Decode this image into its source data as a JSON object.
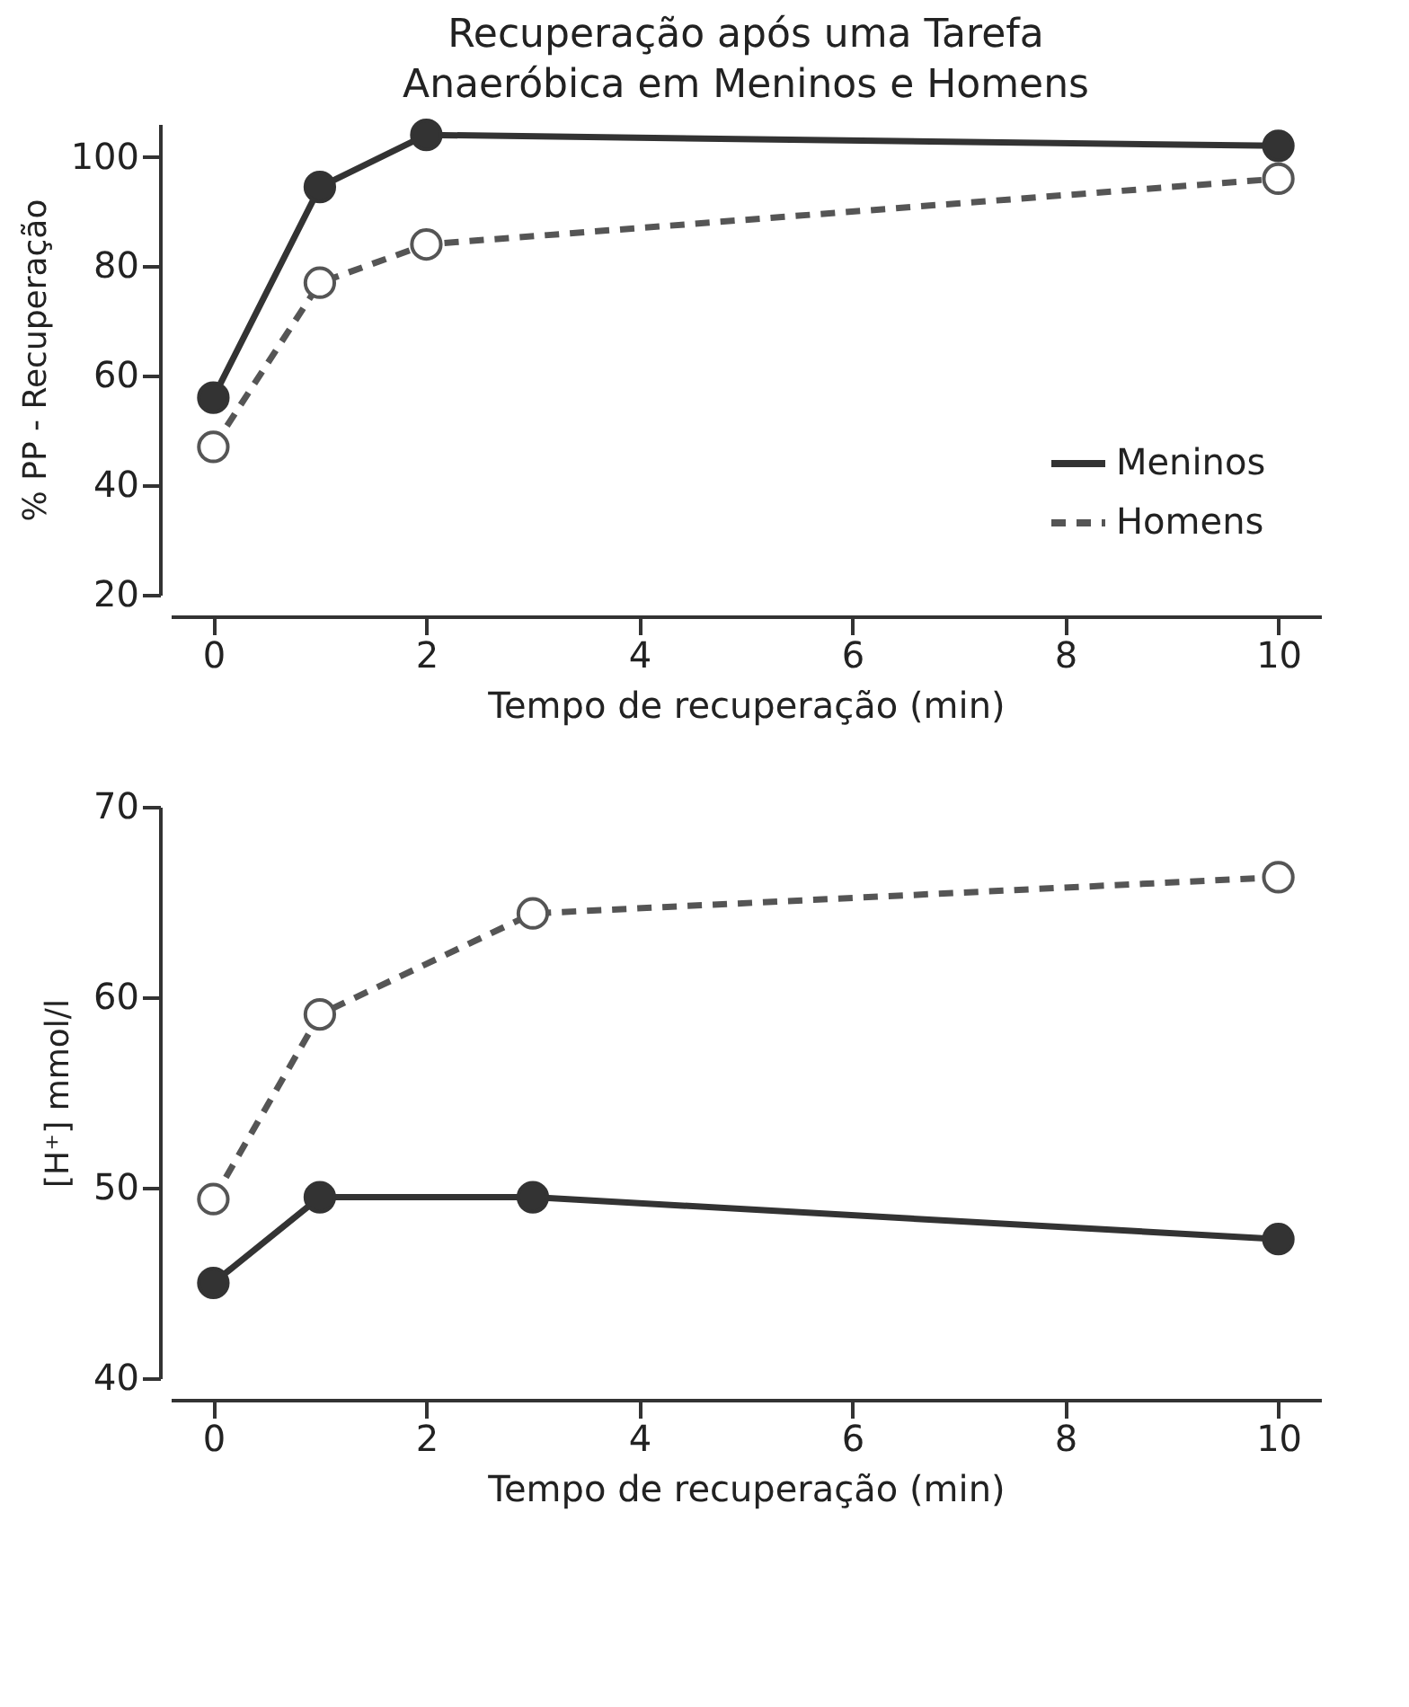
{
  "chart_data": [
    {
      "type": "line",
      "title": "Recuperação após uma Tarefa Anaeróbica em Meninos e Homens",
      "xlabel": "Tempo de recuperação (min)",
      "ylabel": "% PP - Recuperação",
      "x": [
        0,
        1,
        2,
        10
      ],
      "series": [
        {
          "name": "Meninos",
          "color": "#333333",
          "line_style": "solid",
          "values": [
            56,
            94.5,
            104,
            102
          ]
        },
        {
          "name": "Homens",
          "color": "#555555",
          "line_style": "dashed",
          "values": [
            47,
            77,
            84,
            96
          ]
        }
      ],
      "xlim": [
        -0.4,
        10.4
      ],
      "xticks": [
        0,
        2,
        4,
        6,
        8,
        10
      ],
      "ylim": [
        20,
        106
      ],
      "yticks": [
        20,
        40,
        60,
        80,
        100
      ],
      "marker": "circle",
      "legend": "bottom right",
      "grid": false
    },
    {
      "type": "line",
      "xlabel": "Tempo de recuperação (min)",
      "ylabel": "[H⁺] mmol/l",
      "x": [
        0,
        1,
        3,
        10
      ],
      "series": [
        {
          "color": "#555555",
          "line_style": "dashed",
          "values": [
            49.4,
            59.1,
            64.4,
            66.3
          ]
        },
        {
          "color": "#333333",
          "line_style": "solid",
          "values": [
            45,
            49.5,
            49.5,
            47.3
          ]
        }
      ],
      "xlim": [
        -0.4,
        10.4
      ],
      "xticks": [
        0,
        2,
        4,
        6,
        8,
        10
      ],
      "ylim": [
        40,
        70
      ],
      "yticks": [
        40,
        50,
        60,
        70
      ],
      "marker": "circle",
      "grid": false
    }
  ]
}
